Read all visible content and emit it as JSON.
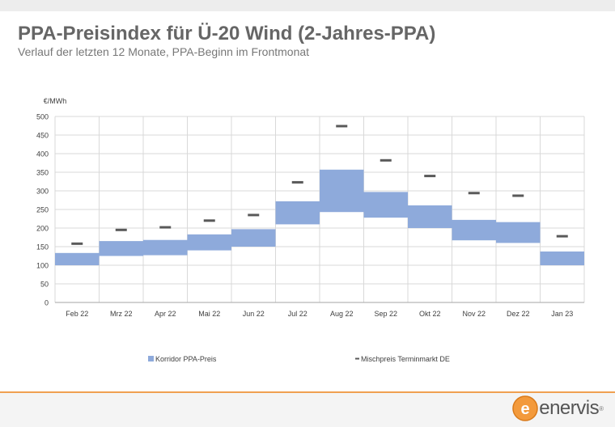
{
  "title": "PPA-Preisindex für Ü-20 Wind (2-Jahres-PPA)",
  "subtitle": "Verlauf der letzten 12 Monate, PPA-Beginn im Frontmonat",
  "brand": {
    "name": "enervis",
    "mark": "e",
    "registered": "®",
    "accent": "#f39a3c"
  },
  "colors": {
    "band": "#8eaadb",
    "marker": "#595959",
    "grid": "#d9d9d9",
    "footer_line": "#f0a050"
  },
  "chart_data": {
    "type": "bar",
    "unit_label": "€/MWh",
    "categories": [
      "Feb 22",
      "Mrz 22",
      "Apr 22",
      "Mai 22",
      "Jun 22",
      "Jul 22",
      "Aug 22",
      "Sep 22",
      "Okt 22",
      "Nov 22",
      "Dez 22",
      "Jan 23"
    ],
    "series": [
      {
        "name": "Korridor PPA-Preis",
        "kind": "range",
        "low": [
          100,
          125,
          127,
          140,
          150,
          210,
          243,
          228,
          200,
          167,
          160,
          100
        ],
        "high": [
          133,
          165,
          168,
          183,
          197,
          272,
          357,
          297,
          261,
          222,
          216,
          137
        ]
      },
      {
        "name": "Mischpreis Terminmarkt DE",
        "kind": "marker",
        "values": [
          158,
          195,
          202,
          220,
          235,
          323,
          474,
          382,
          340,
          294,
          287,
          178
        ]
      }
    ],
    "ylim": [
      0,
      500
    ],
    "yticks": [
      0,
      50,
      100,
      150,
      200,
      250,
      300,
      350,
      400,
      450,
      500
    ],
    "grid": true,
    "legend_position": "bottom"
  }
}
